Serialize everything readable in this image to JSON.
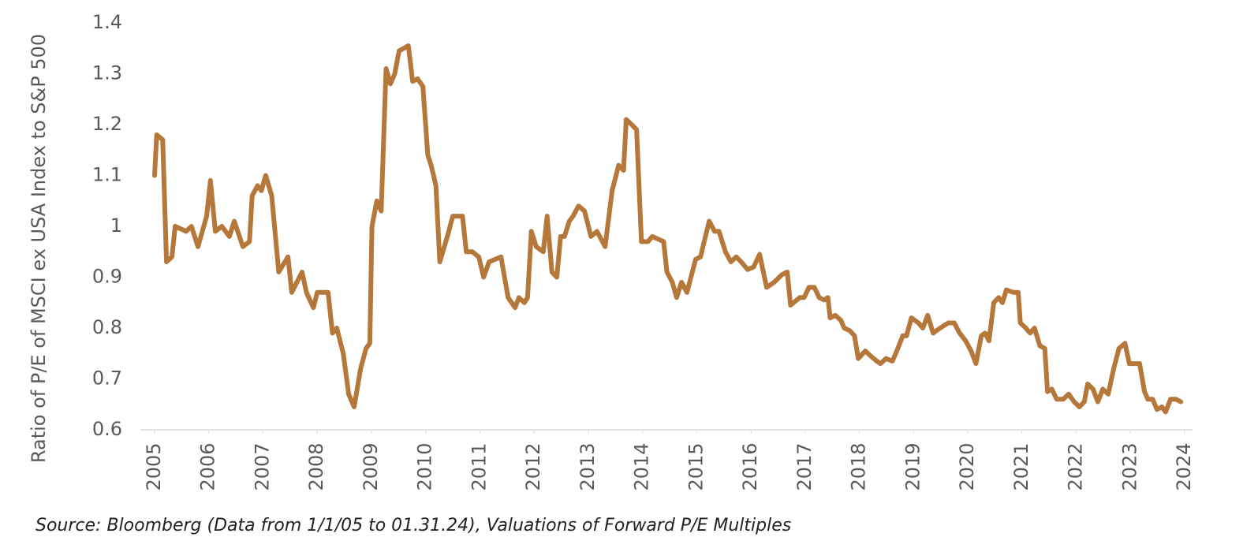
{
  "chart_data": {
    "type": "line",
    "y_label": "Ratio of P/E of MSCI ex USA Index to S&P 500",
    "source": "Source: Bloomberg (Data from 1/1/05 to 01.31.24), Valuations of Forward P/E Multiples",
    "color": "#b5783a",
    "xlim": [
      2005,
      2024
    ],
    "xticks": [
      2005,
      2006,
      2007,
      2008,
      2009,
      2010,
      2011,
      2012,
      2013,
      2014,
      2015,
      2016,
      2017,
      2018,
      2019,
      2020,
      2021,
      2022,
      2023,
      2024
    ],
    "ylim": [
      0.6,
      1.4
    ],
    "yticks": [
      0.6,
      0.7,
      0.8,
      0.9,
      1,
      1.1,
      1.2,
      1.3,
      1.4
    ],
    "x": [
      2005.0,
      2005.04,
      2005.15,
      2005.22,
      2005.32,
      2005.38,
      2005.58,
      2005.68,
      2005.8,
      2005.96,
      2006.03,
      2006.12,
      2006.24,
      2006.38,
      2006.47,
      2006.63,
      2006.75,
      2006.8,
      2006.9,
      2006.97,
      2007.05,
      2007.16,
      2007.29,
      2007.46,
      2007.53,
      2007.72,
      2007.8,
      2007.93,
      2008.0,
      2008.2,
      2008.28,
      2008.36,
      2008.48,
      2008.58,
      2008.68,
      2008.8,
      2008.9,
      2008.97,
      2009.01,
      2009.1,
      2009.18,
      2009.27,
      2009.35,
      2009.43,
      2009.51,
      2009.6,
      2009.68,
      2009.76,
      2009.85,
      2009.95,
      2010.04,
      2010.1,
      2010.19,
      2010.26,
      2010.4,
      2010.5,
      2010.68,
      2010.75,
      2010.86,
      2010.98,
      2011.07,
      2011.17,
      2011.39,
      2011.52,
      2011.65,
      2011.72,
      2011.82,
      2011.88,
      2011.95,
      2012.04,
      2012.17,
      2012.24,
      2012.33,
      2012.42,
      2012.49,
      2012.56,
      2012.65,
      2012.72,
      2012.82,
      2012.93,
      2013.05,
      2013.16,
      2013.31,
      2013.44,
      2013.56,
      2013.65,
      2013.7,
      2013.8,
      2013.89,
      2013.98,
      2014.1,
      2014.18,
      2014.39,
      2014.45,
      2014.55,
      2014.63,
      2014.72,
      2014.82,
      2014.98,
      2015.07,
      2015.16,
      2015.23,
      2015.33,
      2015.41,
      2015.53,
      2015.63,
      2015.73,
      2015.82,
      2015.94,
      2016.05,
      2016.16,
      2016.29,
      2016.43,
      2016.57,
      2016.67,
      2016.73,
      2016.9,
      2016.98,
      2017.07,
      2017.17,
      2017.26,
      2017.35,
      2017.42,
      2017.46,
      2017.56,
      2017.66,
      2017.72,
      2017.82,
      2017.91,
      2017.98,
      2018.11,
      2018.21,
      2018.32,
      2018.39,
      2018.49,
      2018.61,
      2018.71,
      2018.8,
      2018.87,
      2018.96,
      2019.09,
      2019.17,
      2019.26,
      2019.36,
      2019.49,
      2019.64,
      2019.75,
      2019.85,
      2019.96,
      2020.06,
      2020.15,
      2020.25,
      2020.32,
      2020.39,
      2020.48,
      2020.57,
      2020.64,
      2020.71,
      2020.84,
      2020.93,
      2020.97,
      2021.07,
      2021.15,
      2021.23,
      2021.33,
      2021.42,
      2021.47,
      2021.55,
      2021.64,
      2021.76,
      2021.86,
      2021.96,
      2022.06,
      2022.15,
      2022.21,
      2022.31,
      2022.4,
      2022.49,
      2022.59,
      2022.69,
      2022.79,
      2022.9,
      2022.98,
      2023.09,
      2023.17,
      2023.26,
      2023.32,
      2023.41,
      2023.49,
      2023.58,
      2023.65,
      2023.74,
      2023.84,
      2023.93
    ],
    "values": [
      1.1,
      1.18,
      1.17,
      0.93,
      0.94,
      1.0,
      0.99,
      1.0,
      0.96,
      1.02,
      1.09,
      0.99,
      1.0,
      0.98,
      1.01,
      0.96,
      0.97,
      1.06,
      1.08,
      1.07,
      1.1,
      1.06,
      0.91,
      0.94,
      0.87,
      0.91,
      0.87,
      0.84,
      0.87,
      0.87,
      0.79,
      0.8,
      0.75,
      0.67,
      0.645,
      0.72,
      0.76,
      0.77,
      1.0,
      1.05,
      1.03,
      1.31,
      1.28,
      1.3,
      1.345,
      1.35,
      1.355,
      1.285,
      1.29,
      1.275,
      1.14,
      1.12,
      1.08,
      0.93,
      0.98,
      1.02,
      1.02,
      0.95,
      0.95,
      0.94,
      0.9,
      0.93,
      0.94,
      0.86,
      0.84,
      0.86,
      0.85,
      0.86,
      0.99,
      0.96,
      0.95,
      1.02,
      0.91,
      0.9,
      0.98,
      0.98,
      1.01,
      1.02,
      1.04,
      1.03,
      0.98,
      0.99,
      0.96,
      1.07,
      1.12,
      1.11,
      1.21,
      1.2,
      1.19,
      0.97,
      0.97,
      0.98,
      0.97,
      0.91,
      0.89,
      0.86,
      0.89,
      0.87,
      0.935,
      0.94,
      0.98,
      1.01,
      0.99,
      0.99,
      0.95,
      0.93,
      0.94,
      0.93,
      0.915,
      0.92,
      0.945,
      0.88,
      0.89,
      0.905,
      0.91,
      0.845,
      0.86,
      0.86,
      0.88,
      0.88,
      0.86,
      0.855,
      0.86,
      0.82,
      0.825,
      0.815,
      0.8,
      0.795,
      0.785,
      0.74,
      0.755,
      0.745,
      0.735,
      0.73,
      0.74,
      0.735,
      0.76,
      0.785,
      0.785,
      0.82,
      0.81,
      0.8,
      0.825,
      0.79,
      0.8,
      0.81,
      0.81,
      0.79,
      0.775,
      0.755,
      0.73,
      0.785,
      0.79,
      0.775,
      0.85,
      0.86,
      0.85,
      0.875,
      0.87,
      0.87,
      0.81,
      0.8,
      0.79,
      0.8,
      0.765,
      0.76,
      0.675,
      0.68,
      0.66,
      0.66,
      0.67,
      0.655,
      0.645,
      0.655,
      0.69,
      0.68,
      0.655,
      0.68,
      0.67,
      0.72,
      0.76,
      0.77,
      0.73,
      0.73,
      0.73,
      0.675,
      0.66,
      0.66,
      0.64,
      0.645,
      0.635,
      0.66,
      0.66,
      0.655
    ]
  }
}
